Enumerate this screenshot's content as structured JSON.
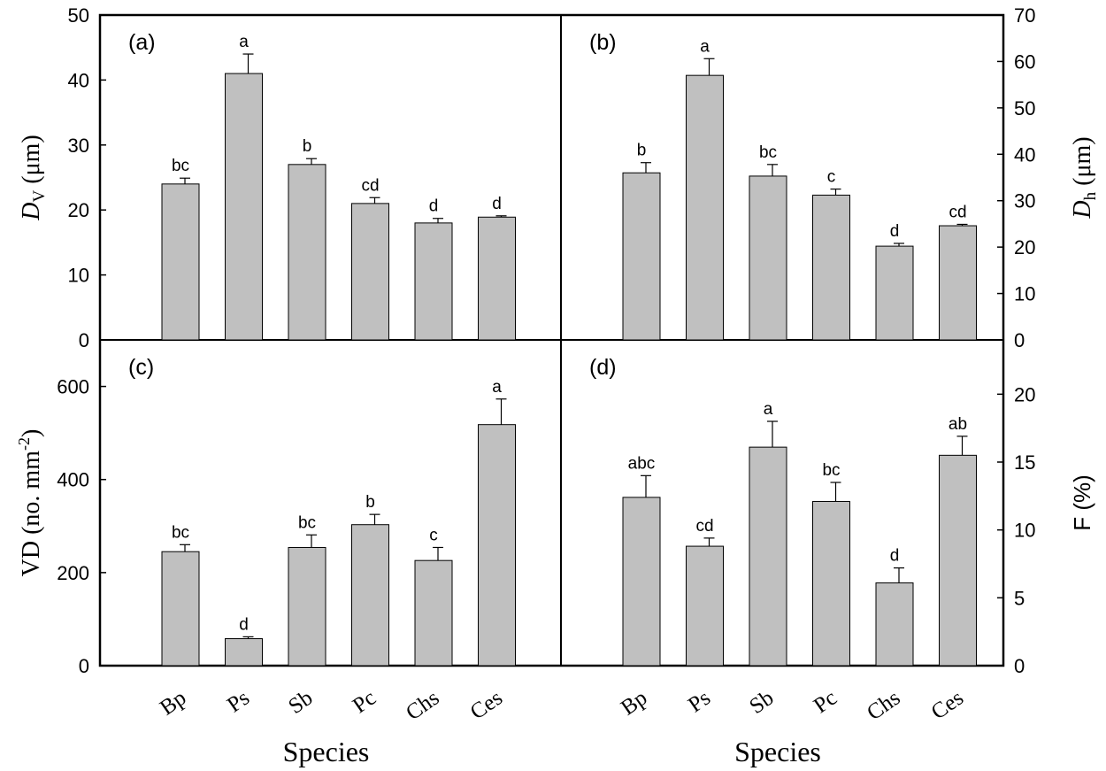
{
  "chart_data": [
    {
      "type": "bar",
      "panel_label": "(a)",
      "categories": [
        "Bp",
        "Ps",
        "Sb",
        "Pc",
        "Chs",
        "Ces"
      ],
      "values": [
        24,
        41,
        27,
        21,
        18,
        18.9
      ],
      "errors": [
        0.9,
        3.0,
        0.9,
        0.9,
        0.7,
        0.2
      ],
      "significance": [
        "bc",
        "a",
        "b",
        "cd",
        "d",
        "d"
      ],
      "ylabel": {
        "main": "D",
        "sub": "v",
        "unit": "(μm)"
      },
      "ylim": [
        0,
        50
      ],
      "yticks": [
        0,
        10,
        20,
        30,
        40,
        50
      ],
      "axis_side": "left"
    },
    {
      "type": "bar",
      "panel_label": "(b)",
      "categories": [
        "Bp",
        "Ps",
        "Sb",
        "Pc",
        "Chs",
        "Ces"
      ],
      "values": [
        36,
        57,
        35.3,
        31.2,
        20.2,
        24.6
      ],
      "errors": [
        2.2,
        3.6,
        2.5,
        1.3,
        0.6,
        0.3
      ],
      "significance": [
        "b",
        "a",
        "bc",
        "c",
        "d",
        "cd"
      ],
      "ylabel": {
        "main": "D",
        "sub": "h",
        "unit": "(μm)"
      },
      "ylim": [
        0,
        70
      ],
      "yticks": [
        0,
        10,
        20,
        30,
        40,
        50,
        60,
        70
      ],
      "axis_side": "right"
    },
    {
      "type": "bar",
      "panel_label": "(c)",
      "categories": [
        "Bp",
        "Ps",
        "Sb",
        "Pc",
        "Chs",
        "Ces"
      ],
      "values": [
        245,
        58,
        254,
        303,
        226,
        518
      ],
      "errors": [
        15,
        4,
        27,
        22,
        28,
        55
      ],
      "significance": [
        "bc",
        "d",
        "bc",
        "b",
        "c",
        "a"
      ],
      "ylabel": {
        "main": "VD (no. mm",
        "sup": "-2",
        "tail": ")"
      },
      "ylim": [
        0,
        700
      ],
      "yticks": [
        0,
        200,
        400,
        600
      ],
      "xlabel": "Species",
      "axis_side": "left"
    },
    {
      "type": "bar",
      "panel_label": "(d)",
      "categories": [
        "Bp",
        "Ps",
        "Sb",
        "Pc",
        "Chs",
        "Ces"
      ],
      "values": [
        12.4,
        8.8,
        16.1,
        12.1,
        6.1,
        15.5
      ],
      "errors": [
        1.6,
        0.6,
        1.9,
        1.4,
        1.1,
        1.4
      ],
      "significance": [
        "abc",
        "cd",
        "a",
        "bc",
        "d",
        "ab"
      ],
      "ylabel": {
        "main": "F (%)"
      },
      "ylim": [
        0,
        24
      ],
      "yticks": [
        0,
        5,
        10,
        15,
        20
      ],
      "xlabel": "Species",
      "axis_side": "right"
    }
  ]
}
